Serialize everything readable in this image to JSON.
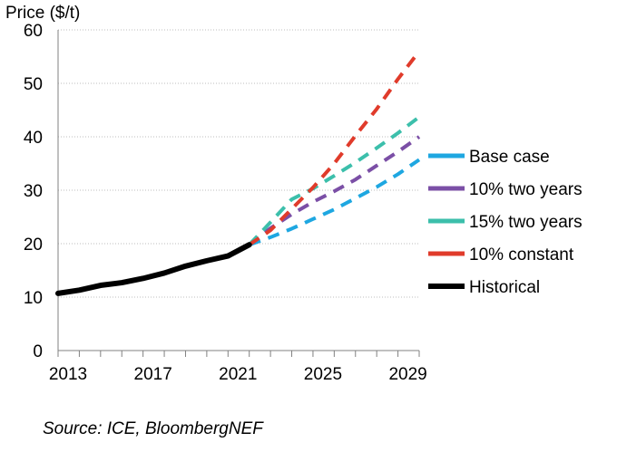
{
  "chart_data": {
    "type": "line",
    "ylabel": "Price ($/t)",
    "xlabel": "",
    "ylim": [
      0,
      60
    ],
    "yticks": [
      0,
      10,
      20,
      30,
      40,
      50,
      60
    ],
    "xlim": [
      2013,
      2030
    ],
    "xticks": [
      2013,
      2017,
      2021,
      2025,
      2029
    ],
    "grid": "horizontal",
    "legend": "right",
    "series": [
      {
        "name": "Base case",
        "color": "#1ea7e1",
        "style": "dashed",
        "x": [
          2022,
          2023,
          2024,
          2025,
          2026,
          2027,
          2028,
          2029,
          2030
        ],
        "values": [
          19.8,
          21.2,
          22.8,
          24.6,
          26.4,
          28.5,
          30.6,
          33.0,
          35.7
        ]
      },
      {
        "name": "10% two years",
        "color": "#7b4fa6",
        "style": "dashed",
        "x": [
          2022,
          2023,
          2024,
          2025,
          2026,
          2027,
          2028,
          2029,
          2030
        ],
        "values": [
          19.8,
          22.9,
          25.5,
          27.8,
          29.8,
          32.0,
          34.6,
          37.2,
          40.0
        ]
      },
      {
        "name": "15% two years",
        "color": "#3cbfab",
        "style": "dashed",
        "x": [
          2022,
          2023,
          2024,
          2025,
          2026,
          2027,
          2028,
          2029,
          2030
        ],
        "values": [
          19.8,
          24.0,
          28.3,
          30.3,
          32.7,
          35.2,
          37.9,
          40.7,
          43.7
        ]
      },
      {
        "name": "10% constant",
        "color": "#e03b2b",
        "style": "dashed",
        "x": [
          2022,
          2023,
          2024,
          2025,
          2026,
          2027,
          2028,
          2029,
          2030
        ],
        "values": [
          19.8,
          22.5,
          26.5,
          30.5,
          35.0,
          40.2,
          45.2,
          50.8,
          56.0
        ]
      },
      {
        "name": "Historical",
        "color": "#000000",
        "style": "solid",
        "x": [
          2013,
          2014,
          2015,
          2016,
          2017,
          2018,
          2019,
          2020,
          2021,
          2022
        ],
        "values": [
          10.7,
          11.3,
          12.2,
          12.7,
          13.5,
          14.5,
          15.8,
          16.8,
          17.7,
          19.8
        ]
      }
    ]
  },
  "source": "Source: ICE, BloombergNEF"
}
